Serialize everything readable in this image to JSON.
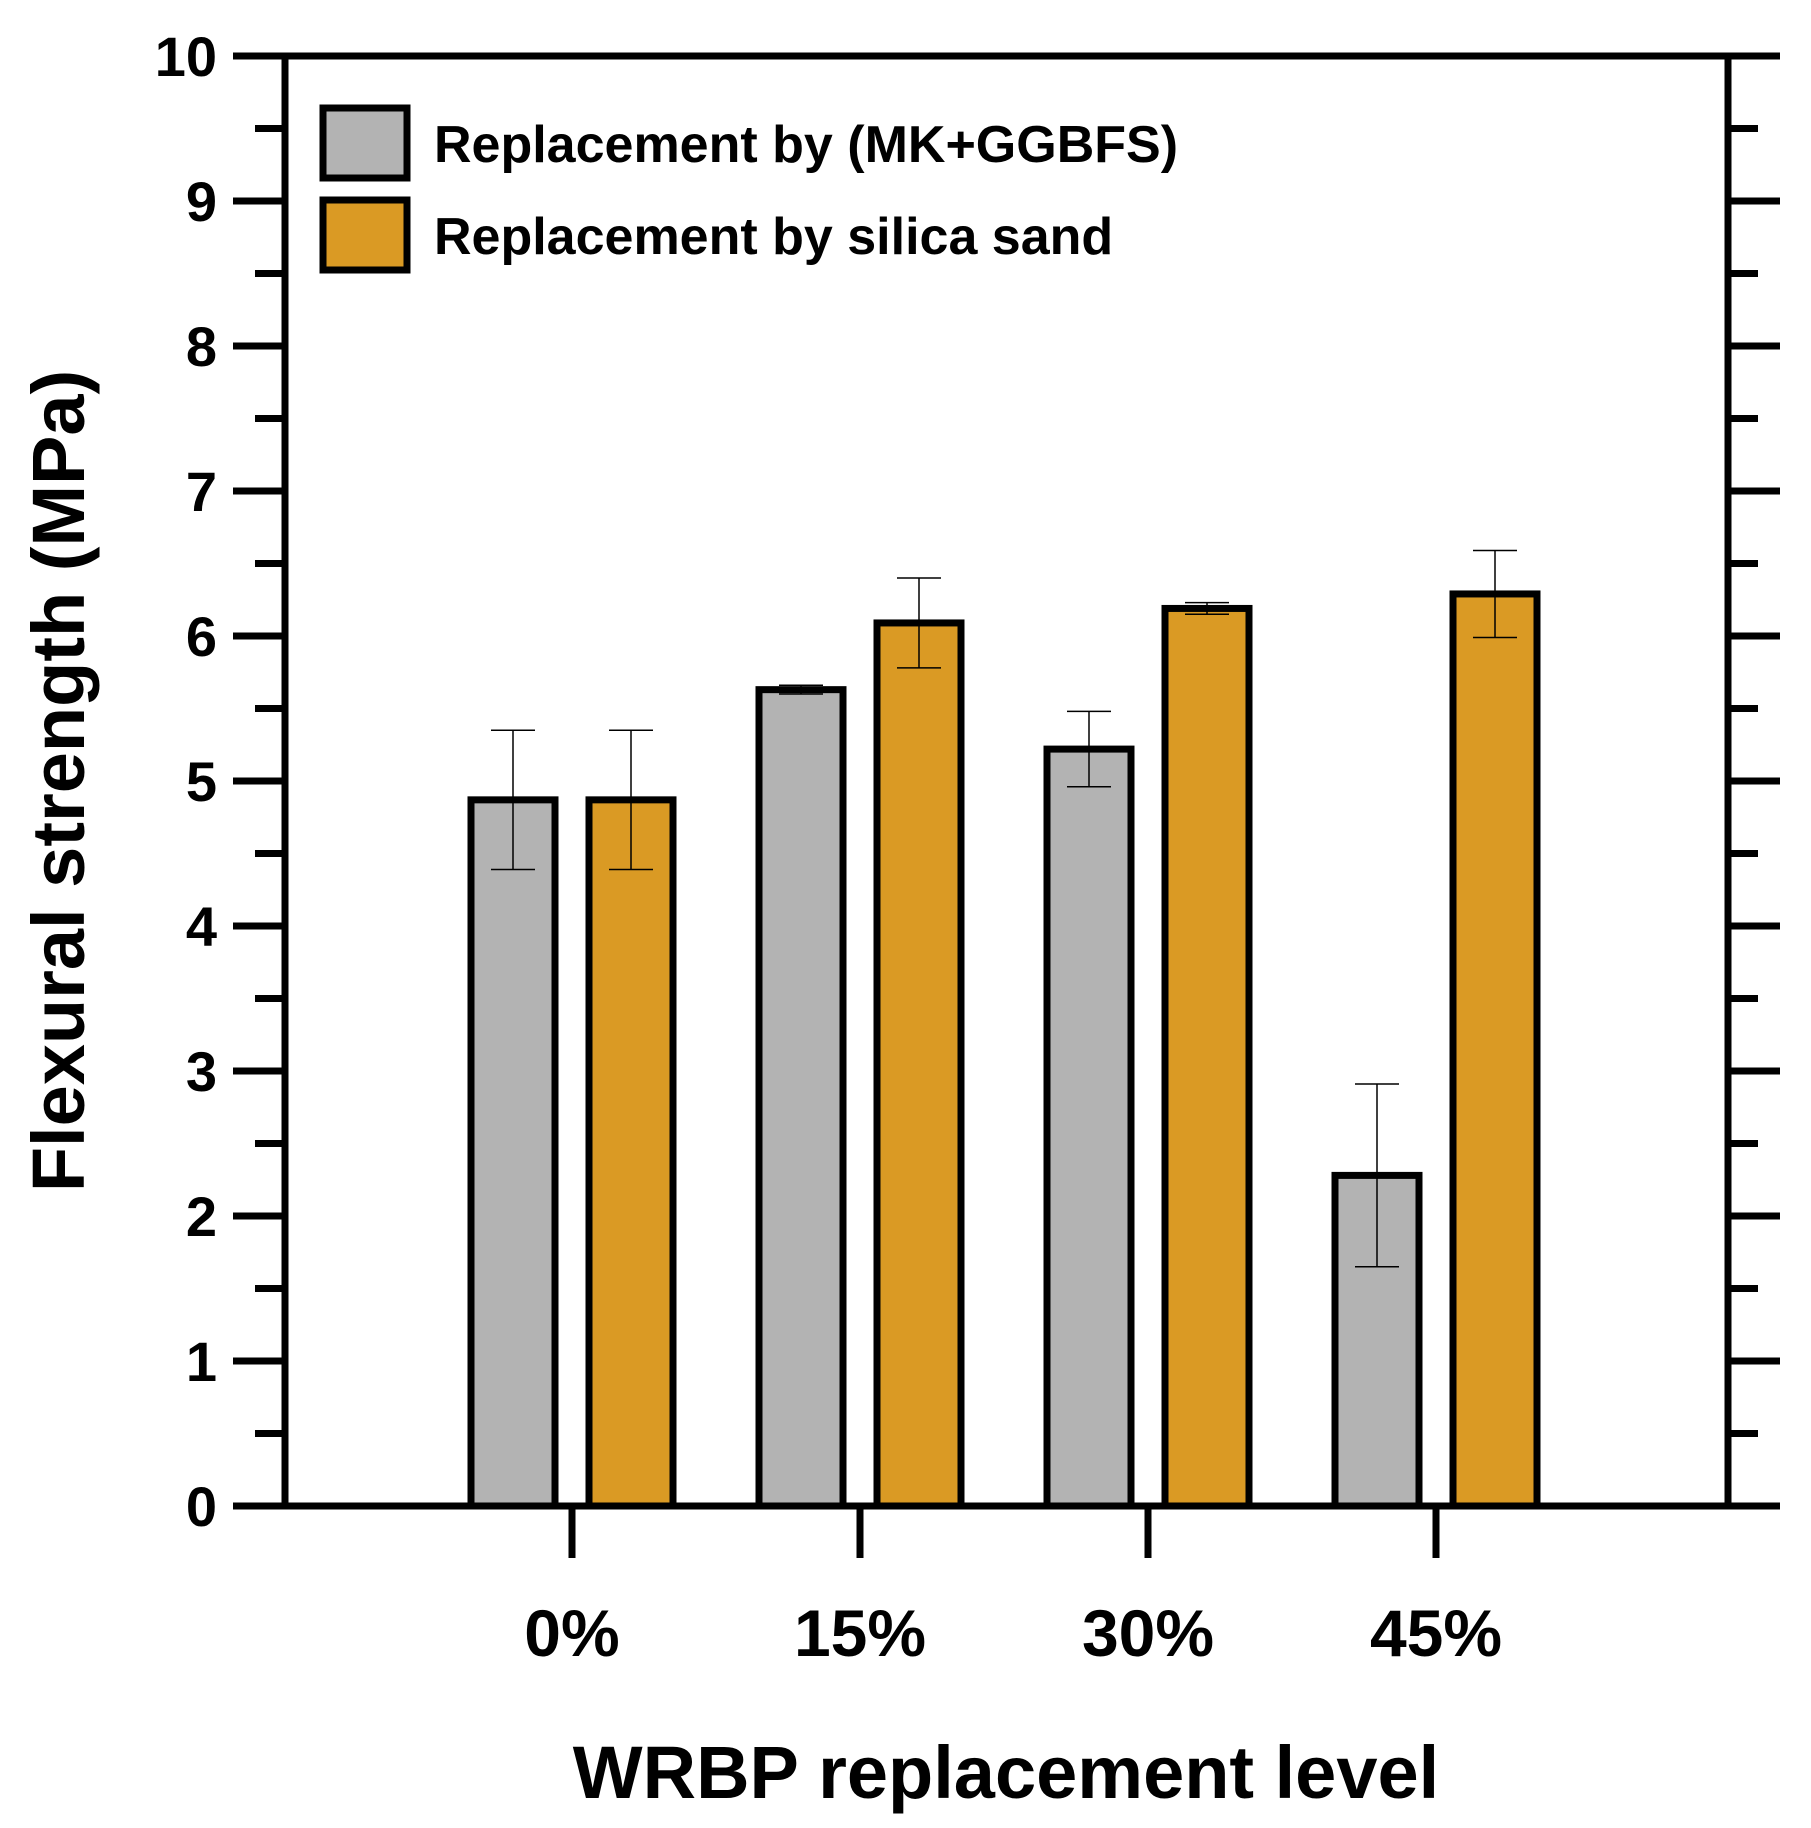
{
  "chart_data": {
    "type": "bar",
    "title": "",
    "xlabel": "WRBP replacement level",
    "ylabel": "Flexural strength (MPa)",
    "ylim": [
      0,
      10
    ],
    "yticks": [
      "0",
      "1",
      "2",
      "3",
      "4",
      "5",
      "6",
      "7",
      "8",
      "9",
      "10"
    ],
    "categories": [
      "0%",
      "15%",
      "30%",
      "45%"
    ],
    "series": [
      {
        "name": "Replacement by (MK+GGBFS)",
        "color": "#b3b3b3",
        "values": [
          4.87,
          5.63,
          5.22,
          2.28
        ],
        "errors": [
          0.48,
          0.03,
          0.26,
          0.63
        ]
      },
      {
        "name": "Replacement by silica sand",
        "color": "#da9a24",
        "values": [
          4.87,
          6.09,
          6.19,
          6.29
        ],
        "errors": [
          0.48,
          0.31,
          0.04,
          0.3
        ]
      }
    ],
    "legend_position": "top-left",
    "grid": false
  }
}
